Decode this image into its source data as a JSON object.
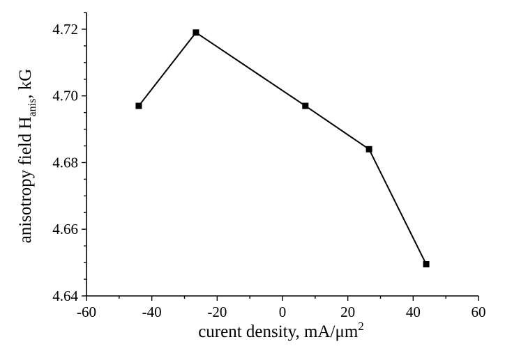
{
  "chart_data": {
    "type": "line",
    "xlabel": "curent density, mA/μm",
    "xlabel_superscript": "2",
    "ylabel_prefix": "anisotropy field H",
    "ylabel_subscript": "anis",
    "ylabel_suffix": ", kG",
    "xlim": [
      -60,
      60
    ],
    "ylim": [
      4.64,
      4.725
    ],
    "xticks": [
      -60,
      -40,
      -20,
      0,
      20,
      40,
      60
    ],
    "xtick_labels": [
      "-60",
      "-40",
      "-20",
      "0",
      "20",
      "40",
      "60"
    ],
    "yticks": [
      4.64,
      4.66,
      4.68,
      4.7,
      4.72
    ],
    "ytick_labels": [
      "4.64",
      "4.66",
      "4.68",
      "4.70",
      "4.72"
    ],
    "grid": false,
    "series": [
      {
        "marker": "square",
        "color": "#000000",
        "x": [
          -44,
          -26.5,
          7,
          26.5,
          44
        ],
        "y": [
          4.697,
          4.719,
          4.697,
          4.684,
          4.6495
        ]
      }
    ]
  }
}
